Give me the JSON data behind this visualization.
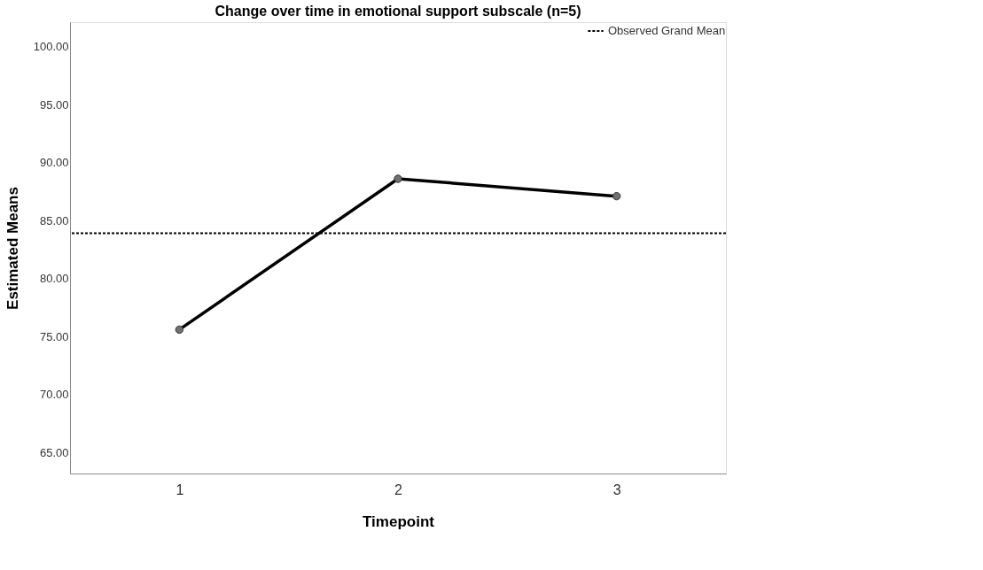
{
  "chart_data": {
    "type": "line",
    "title": "Change over time in emotional support subscale (n=5)",
    "xlabel": "Timepoint",
    "ylabel": "Estimated Means",
    "categories": [
      "1",
      "2",
      "3"
    ],
    "series": [
      {
        "color": "#000000",
        "values": [
          75.6,
          88.6,
          87.1
        ]
      }
    ],
    "ylim": [
      63.2,
      102.1
    ],
    "yticks": [
      {
        "value": 65,
        "label": "65.00"
      },
      {
        "value": 70,
        "label": "70.00"
      },
      {
        "value": 75,
        "label": "75.00"
      },
      {
        "value": 80,
        "label": "80.00"
      },
      {
        "value": 85,
        "label": "85.00"
      },
      {
        "value": 90,
        "label": "90.00"
      },
      {
        "value": 95,
        "label": "95.00"
      },
      {
        "value": 100,
        "label": "100.00"
      }
    ],
    "ref_lines": [
      {
        "axis": "y",
        "value": 83.9,
        "label": "Observed Grand Mean",
        "color": "#000000",
        "line_style": "dotted"
      }
    ],
    "marker": "circle",
    "line_style": "solid",
    "grid": false,
    "legend": "top right"
  }
}
